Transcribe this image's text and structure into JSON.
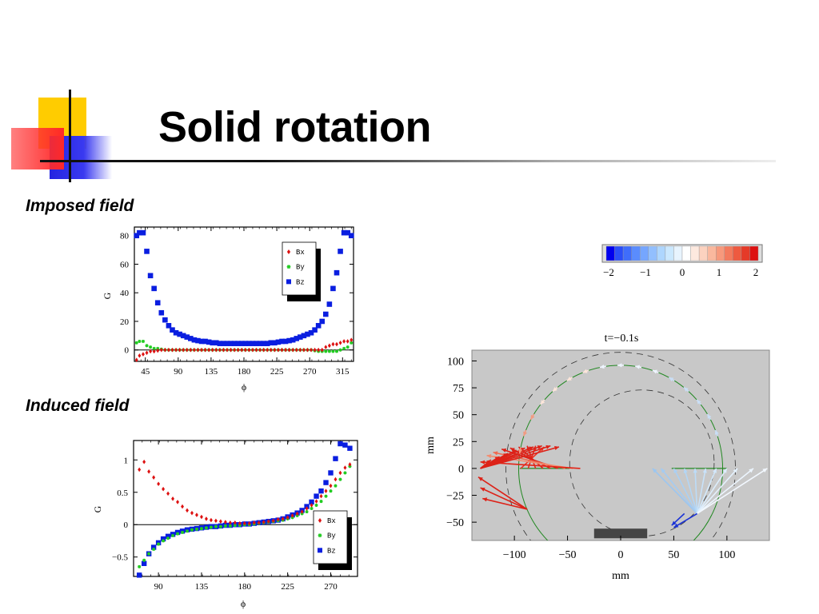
{
  "slide": {
    "title": "Solid rotation"
  },
  "sections": {
    "imposed": "Imposed field",
    "induced": "Induced field"
  },
  "colors": {
    "bx": "#dd1111",
    "by": "#22cc22",
    "bz": "#0a1ee0",
    "panel_bg": "#c8c8c8",
    "boundary": "#228822"
  },
  "chart_data": [
    {
      "type": "scatter",
      "xlabel": "ϕ",
      "ylabel": "G",
      "xticks": [
        45,
        90,
        135,
        180,
        225,
        270,
        315
      ],
      "yticks": [
        0,
        20,
        40,
        60,
        80
      ],
      "xlim": [
        30,
        330
      ],
      "ylim": [
        -8,
        86
      ],
      "legend": [
        "Bx",
        "By",
        "Bz"
      ],
      "legend_position": "top-right",
      "series": [
        {
          "name": "Bx",
          "x": [
            33,
            37,
            42,
            47,
            52,
            57,
            62,
            67,
            72,
            77,
            82,
            87,
            92,
            97,
            102,
            107,
            112,
            117,
            122,
            127,
            132,
            137,
            142,
            147,
            152,
            157,
            162,
            167,
            172,
            177,
            182,
            187,
            192,
            197,
            202,
            207,
            212,
            217,
            222,
            227,
            232,
            237,
            242,
            247,
            252,
            257,
            262,
            267,
            272,
            277,
            282,
            287,
            292,
            297,
            302,
            307,
            312,
            317,
            322,
            327
          ],
          "y": [
            -7,
            -4,
            -3,
            -2,
            -1,
            -1,
            -0.5,
            0,
            0,
            0,
            0,
            0,
            0,
            0,
            0,
            0,
            0,
            0,
            0,
            0,
            0,
            0,
            0,
            0,
            0,
            0,
            0,
            0,
            0,
            0,
            0,
            0,
            0,
            0,
            0,
            0,
            0,
            0,
            0,
            0,
            0,
            0,
            0,
            0,
            0,
            0,
            0,
            0,
            0,
            0,
            0,
            0,
            2,
            3,
            4,
            4,
            5,
            6,
            6,
            7
          ]
        },
        {
          "name": "By",
          "x": [
            33,
            37,
            42,
            47,
            52,
            57,
            62,
            67,
            72,
            77,
            82,
            87,
            92,
            97,
            102,
            107,
            112,
            117,
            122,
            127,
            132,
            137,
            142,
            147,
            152,
            157,
            162,
            167,
            172,
            177,
            182,
            187,
            192,
            197,
            202,
            207,
            212,
            217,
            222,
            227,
            232,
            237,
            242,
            247,
            252,
            257,
            262,
            267,
            272,
            277,
            282,
            287,
            292,
            297,
            302,
            307,
            312,
            317,
            322,
            327
          ],
          "y": [
            5,
            6,
            6,
            3,
            2,
            1,
            1,
            0.5,
            0,
            0,
            0,
            0,
            0,
            0,
            0,
            0,
            0,
            0,
            0,
            0,
            0,
            0,
            0,
            0,
            0,
            0,
            0,
            0,
            0,
            0,
            0,
            0,
            0,
            0,
            0,
            0,
            0,
            0,
            0,
            0,
            0,
            0,
            0,
            0,
            0,
            0,
            0,
            0,
            0,
            -0.5,
            -1,
            -1,
            -1,
            -1,
            -1,
            -1,
            0,
            1,
            2,
            5
          ]
        },
        {
          "name": "Bz",
          "x": [
            33,
            37,
            42,
            47,
            52,
            57,
            62,
            67,
            72,
            77,
            82,
            87,
            92,
            97,
            102,
            107,
            112,
            117,
            122,
            127,
            132,
            137,
            142,
            147,
            152,
            157,
            162,
            167,
            172,
            177,
            182,
            187,
            192,
            197,
            202,
            207,
            212,
            217,
            222,
            227,
            232,
            237,
            242,
            247,
            252,
            257,
            262,
            267,
            272,
            277,
            282,
            287,
            292,
            297,
            302,
            307,
            312,
            317,
            322,
            327
          ],
          "y": [
            80,
            82,
            82,
            69,
            52,
            43,
            33,
            26,
            21,
            17,
            14,
            12,
            11,
            10,
            9,
            8,
            7,
            6.5,
            6,
            6,
            5.5,
            5,
            5,
            4.5,
            4.5,
            4.5,
            4.5,
            4.5,
            4.5,
            4.5,
            4.5,
            4.5,
            4.5,
            4.5,
            4.5,
            4.5,
            4.5,
            5,
            5,
            5.5,
            6,
            6,
            6.5,
            7,
            8,
            9,
            10,
            11,
            12,
            14,
            17,
            20,
            25,
            32,
            43,
            54,
            69,
            82,
            82,
            80
          ]
        }
      ]
    },
    {
      "type": "scatter",
      "xlabel": "ϕ",
      "ylabel": "G",
      "xticks": [
        90,
        135,
        180,
        225,
        270
      ],
      "yticks": [
        -0.5,
        0,
        0.5,
        1
      ],
      "ylim": [
        -0.8,
        1.3
      ],
      "xlim": [
        64,
        298
      ],
      "legend": [
        "Bx",
        "By",
        "Bz"
      ],
      "legend_position": "bottom-right",
      "series": [
        {
          "name": "Bx",
          "x": [
            70,
            75,
            80,
            85,
            90,
            95,
            100,
            105,
            110,
            115,
            120,
            125,
            130,
            135,
            140,
            145,
            150,
            155,
            160,
            165,
            170,
            175,
            180,
            185,
            190,
            195,
            200,
            205,
            210,
            215,
            220,
            225,
            230,
            235,
            240,
            245,
            250,
            255,
            260,
            265,
            270,
            275,
            280,
            285,
            290
          ],
          "y": [
            0.85,
            0.97,
            0.82,
            0.73,
            0.63,
            0.55,
            0.48,
            0.4,
            0.35,
            0.28,
            0.22,
            0.18,
            0.15,
            0.12,
            0.09,
            0.07,
            0.06,
            0.05,
            0.04,
            0.03,
            0.03,
            0.02,
            0.02,
            0.02,
            0.03,
            0.03,
            0.04,
            0.05,
            0.06,
            0.08,
            0.09,
            0.11,
            0.14,
            0.17,
            0.2,
            0.25,
            0.3,
            0.36,
            0.44,
            0.52,
            0.6,
            0.7,
            0.8,
            0.88,
            0.93
          ]
        },
        {
          "name": "By",
          "x": [
            70,
            75,
            80,
            85,
            90,
            95,
            100,
            105,
            110,
            115,
            120,
            125,
            130,
            135,
            140,
            145,
            150,
            155,
            160,
            165,
            170,
            175,
            180,
            185,
            190,
            195,
            200,
            205,
            210,
            215,
            220,
            225,
            230,
            235,
            240,
            245,
            250,
            255,
            260,
            265,
            270,
            275,
            280,
            285,
            290
          ],
          "y": [
            -0.65,
            -0.55,
            -0.45,
            -0.38,
            -0.3,
            -0.25,
            -0.21,
            -0.17,
            -0.14,
            -0.12,
            -0.1,
            -0.08,
            -0.07,
            -0.06,
            -0.05,
            -0.04,
            -0.03,
            -0.03,
            -0.02,
            -0.02,
            -0.01,
            -0.01,
            0,
            0,
            0.01,
            0.02,
            0.03,
            0.04,
            0.05,
            0.06,
            0.07,
            0.09,
            0.11,
            0.14,
            0.17,
            0.2,
            0.25,
            0.3,
            0.36,
            0.44,
            0.52,
            0.6,
            0.7,
            0.8,
            0.9
          ]
        },
        {
          "name": "Bz",
          "x": [
            70,
            75,
            80,
            85,
            90,
            95,
            100,
            105,
            110,
            115,
            120,
            125,
            130,
            135,
            140,
            145,
            150,
            155,
            160,
            165,
            170,
            175,
            180,
            185,
            190,
            195,
            200,
            205,
            210,
            215,
            220,
            225,
            230,
            235,
            240,
            245,
            250,
            255,
            260,
            265,
            270,
            275,
            280,
            285,
            290
          ],
          "y": [
            -0.78,
            -0.6,
            -0.45,
            -0.35,
            -0.28,
            -0.22,
            -0.18,
            -0.15,
            -0.12,
            -0.1,
            -0.08,
            -0.07,
            -0.06,
            -0.05,
            -0.04,
            -0.03,
            -0.03,
            -0.02,
            -0.01,
            -0.01,
            0,
            0,
            0.01,
            0.01,
            0.02,
            0.03,
            0.04,
            0.05,
            0.06,
            0.07,
            0.09,
            0.12,
            0.15,
            0.18,
            0.22,
            0.28,
            0.35,
            0.44,
            0.52,
            0.65,
            0.8,
            1.02,
            1.25,
            1.23,
            1.18
          ]
        }
      ]
    },
    {
      "type": "heatmap",
      "title": "",
      "colorbar_ticks": [
        "−2",
        "−1",
        "0",
        "1",
        "2"
      ],
      "colorbar_range": [
        -2,
        2
      ]
    },
    {
      "type": "scatter",
      "title": "t=−0.1s",
      "xlabel": "mm",
      "ylabel": "mm",
      "xticks": [
        -100,
        -50,
        0,
        50,
        100
      ],
      "yticks": [
        100,
        75,
        50,
        25,
        0,
        -25,
        -50
      ],
      "xlim": [
        -140,
        140
      ],
      "ylim": [
        -67,
        110
      ],
      "circle_center": [
        0,
        0
      ],
      "circle_radius": 96,
      "dashed_circles": [
        [
          20,
          5,
          68
        ],
        [
          0,
          0,
          108
        ]
      ],
      "magnet_bar": {
        "x": [
          -25,
          25
        ],
        "y": [
          -65,
          -56
        ]
      },
      "vectors_left_origin": [
        -142,
        0
      ],
      "vectors_left": [
        [
          -72,
          20
        ],
        [
          -80,
          21
        ],
        [
          -88,
          21
        ],
        [
          -96,
          20
        ],
        [
          -104,
          19
        ],
        [
          -112,
          18
        ],
        [
          -120,
          15
        ],
        [
          -126,
          12
        ],
        [
          -132,
          6
        ],
        [
          -134,
          -8
        ],
        [
          -132,
          -18
        ],
        [
          -130,
          -28
        ]
      ],
      "vectors_right_origin": [
        72,
        -42
      ],
      "vectors_right": [
        [
          30,
          0
        ],
        [
          38,
          0
        ],
        [
          50,
          0
        ],
        [
          60,
          0
        ],
        [
          70,
          0
        ],
        [
          80,
          0
        ],
        [
          90,
          0
        ],
        [
          100,
          0
        ],
        [
          110,
          0
        ],
        [
          125,
          0
        ],
        [
          138,
          0
        ],
        [
          50,
          -55
        ]
      ],
      "arc_arrows_angles": [
        170,
        160,
        150,
        140,
        130,
        120,
        110,
        100,
        90,
        80,
        70,
        60,
        50,
        40,
        30,
        20
      ]
    }
  ]
}
